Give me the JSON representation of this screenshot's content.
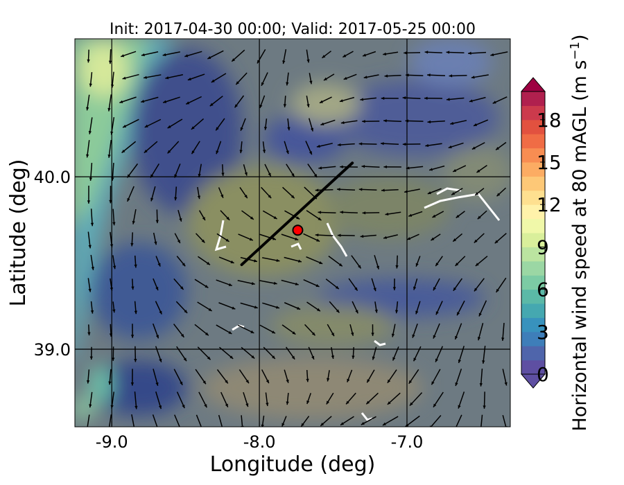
{
  "title": "Init: 2017-04-30 00:00; Valid: 2017-05-25 00:00",
  "x_axis": {
    "label": "Longitude (deg)",
    "range": [
      -9.25,
      -6.3
    ],
    "ticks": [
      {
        "value": -9.0,
        "label": "-9.0"
      },
      {
        "value": -8.0,
        "label": "-8.0"
      },
      {
        "value": -7.0,
        "label": "-7.0"
      }
    ]
  },
  "y_axis": {
    "label": "Latitude (deg)",
    "range": [
      38.55,
      40.8
    ],
    "ticks": [
      {
        "value": 40.0,
        "label": "40.0"
      },
      {
        "value": 39.0,
        "label": "39.0"
      }
    ]
  },
  "colorbar": {
    "label": "Horizontal wind speed at 80 mAGL (m s",
    "label_sup": "−1",
    "label_end": ")",
    "range": [
      0,
      20
    ],
    "ticks": [
      {
        "value": 0,
        "label": "0"
      },
      {
        "value": 3,
        "label": "3"
      },
      {
        "value": 6,
        "label": "6"
      },
      {
        "value": 9,
        "label": "9"
      },
      {
        "value": 12,
        "label": "12"
      },
      {
        "value": 15,
        "label": "15"
      },
      {
        "value": 18,
        "label": "18"
      }
    ],
    "colors": [
      "#5e4fa2",
      "#4f65ab",
      "#3e7eb9",
      "#3892bd",
      "#45a8b0",
      "#5bb9a7",
      "#7ccba4",
      "#9bd7a4",
      "#bbe4a0",
      "#d9ef9b",
      "#f0f8a9",
      "#fff2aa",
      "#fee090",
      "#fdc877",
      "#fcac63",
      "#f88d52",
      "#f06c45",
      "#e2513f",
      "#cc3a4c",
      "#b0204e"
    ],
    "extend_low_color": "#5e4fa2",
    "extend_high_color": "#9e0142"
  },
  "map": {
    "gridlines_lon": [
      -9.0,
      -8.0,
      -7.0
    ],
    "gridlines_lat": [
      40.0,
      39.0
    ],
    "transect": {
      "start": [
        -8.12,
        39.49
      ],
      "end": [
        -7.37,
        40.08
      ]
    },
    "site_marker": {
      "lon": -7.74,
      "lat": 39.69,
      "color": "#ff0000"
    },
    "arrow_color": "#000000"
  }
}
